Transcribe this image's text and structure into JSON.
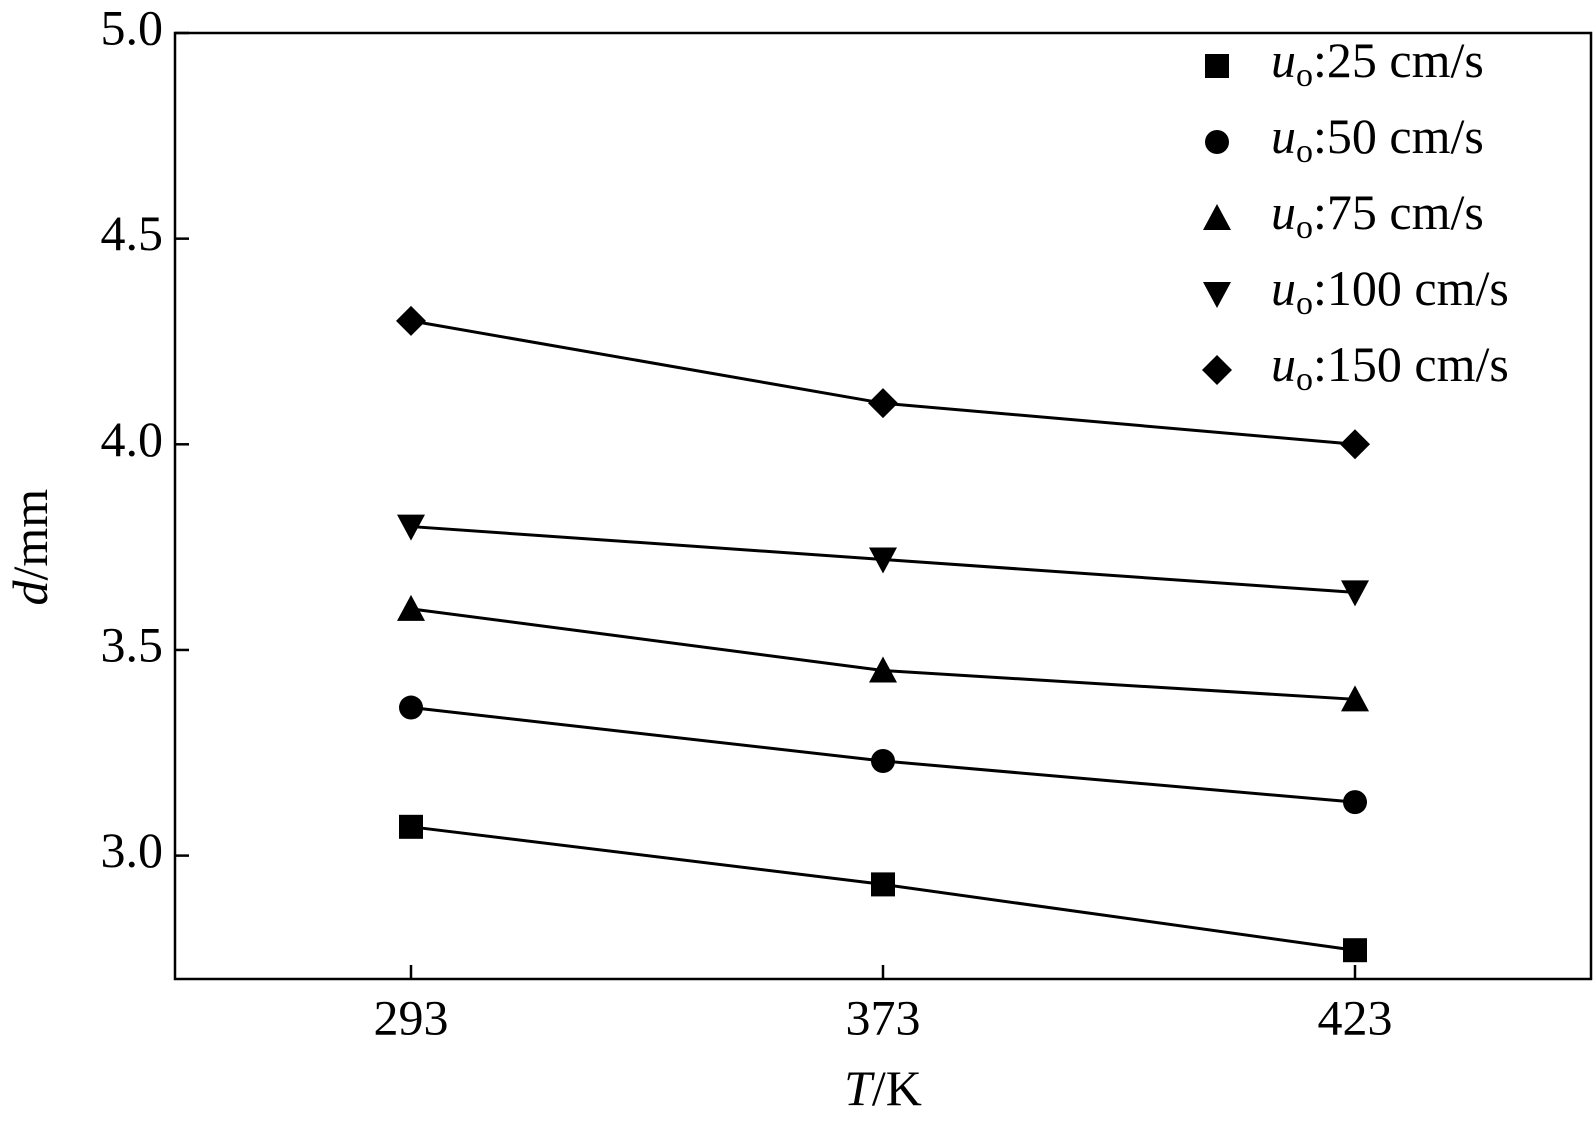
{
  "chart_data": {
    "type": "line",
    "x_label": "T/K",
    "y_label": "d/mm",
    "categories": [
      "293",
      "373",
      "423"
    ],
    "series": [
      {
        "name": "uo:25 cm/s",
        "color": "#000000",
        "marker": "square",
        "values": [
          3.07,
          2.93,
          2.77
        ]
      },
      {
        "name": "uo:50 cm/s",
        "color": "#000000",
        "marker": "circle",
        "values": [
          3.36,
          3.23,
          3.13
        ]
      },
      {
        "name": "uo:75 cm/s",
        "color": "#000000",
        "marker": "triangle-up",
        "values": [
          3.6,
          3.45,
          3.38
        ]
      },
      {
        "name": "uo:100 cm/s",
        "color": "#000000",
        "marker": "triangle-down",
        "values": [
          3.8,
          3.72,
          3.64
        ]
      },
      {
        "name": "uo:150 cm/s",
        "color": "#000000",
        "marker": "diamond",
        "values": [
          4.3,
          4.1,
          4.0
        ]
      }
    ],
    "ylim": [
      2.7,
      5.0
    ],
    "yticks": [
      {
        "value": 3,
        "label": "3.0"
      },
      {
        "value": 3.5,
        "label": "3.5"
      },
      {
        "value": 4,
        "label": "4.0"
      },
      {
        "value": 4.5,
        "label": "4.5"
      },
      {
        "value": 5,
        "label": "5.0"
      }
    ],
    "grid": false,
    "legend": "upper right"
  }
}
